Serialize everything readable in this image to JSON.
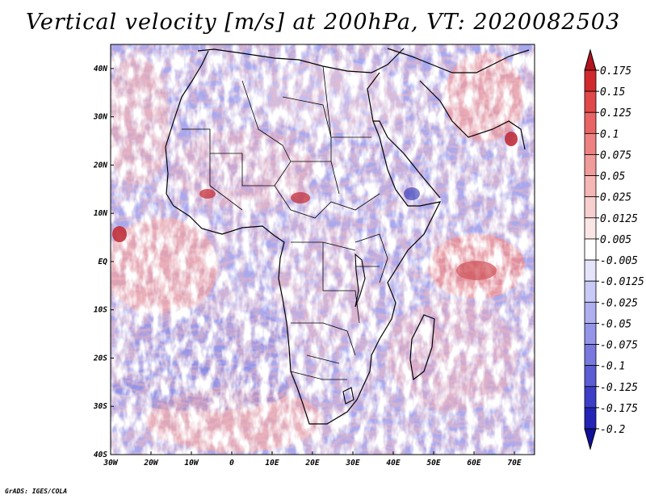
{
  "title": "Vertical velocity [m/s] at 200hPa, VT: 2020082503",
  "credit": "GrADS: IGES/COLA",
  "map": {
    "lon_range": [
      -30,
      75
    ],
    "lat_range": [
      -40,
      45
    ],
    "lon_ticks": [
      {
        "value": -30,
        "label": "30W"
      },
      {
        "value": -20,
        "label": "20W"
      },
      {
        "value": -10,
        "label": "10W"
      },
      {
        "value": 0,
        "label": "0"
      },
      {
        "value": 10,
        "label": "10E"
      },
      {
        "value": 20,
        "label": "20E"
      },
      {
        "value": 30,
        "label": "30E"
      },
      {
        "value": 40,
        "label": "40E"
      },
      {
        "value": 50,
        "label": "50E"
      },
      {
        "value": 60,
        "label": "60E"
      },
      {
        "value": 70,
        "label": "70E"
      }
    ],
    "lat_ticks": [
      {
        "value": 40,
        "label": "40N"
      },
      {
        "value": 30,
        "label": "30N"
      },
      {
        "value": 20,
        "label": "20N"
      },
      {
        "value": 10,
        "label": "10N"
      },
      {
        "value": 0,
        "label": "EQ"
      },
      {
        "value": -10,
        "label": "10S"
      },
      {
        "value": -20,
        "label": "20S"
      },
      {
        "value": -30,
        "label": "30S"
      },
      {
        "value": -40,
        "label": "40S"
      }
    ]
  },
  "colorbar": {
    "labels": [
      "0.175",
      "0.15",
      "0.125",
      "0.1",
      "0.075",
      "0.05",
      "0.025",
      "0.0125",
      "0.005",
      "-0.005",
      "-0.0125",
      "-0.025",
      "-0.05",
      "-0.075",
      "-0.1",
      "-0.125",
      "-0.175",
      "-0.2"
    ],
    "colors": [
      "#b0141e",
      "#d12a2e",
      "#e0484a",
      "#e96565",
      "#ee8181",
      "#f19b9b",
      "#f5b6b6",
      "#f8cfcf",
      "#fbe6e6",
      "#ffffff",
      "#e4e4fb",
      "#cacaf6",
      "#afaff0",
      "#9494e8",
      "#7878de",
      "#5c5cd4",
      "#3d3dc7",
      "#2323b5",
      "#10109a"
    ]
  }
}
